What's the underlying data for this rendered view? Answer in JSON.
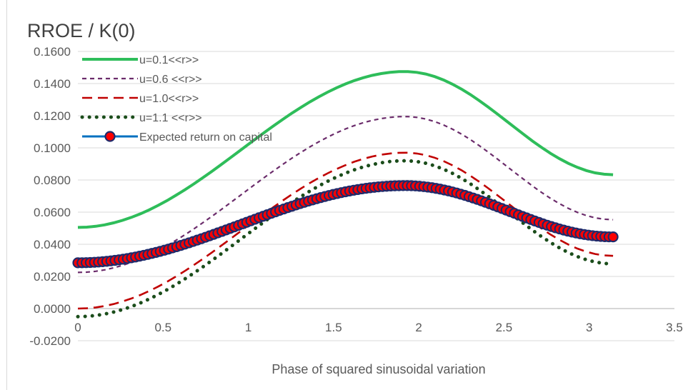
{
  "chart_data": {
    "type": "line",
    "title": "RROE / K(0)",
    "xlabel": "Phase of squared sinusoidal variation",
    "ylabel": "",
    "xlim": [
      0,
      3.5
    ],
    "ylim": [
      -0.02,
      0.16
    ],
    "x_ticks": [
      "0",
      "0.5",
      "1",
      "1.5",
      "2",
      "2.5",
      "3",
      "3.5"
    ],
    "y_ticks": [
      "-0.0200",
      "0.0000",
      "0.0200",
      "0.0400",
      "0.0600",
      "0.0800",
      "0.1000",
      "0.1200",
      "0.1400",
      "0.1600"
    ],
    "grid": true,
    "legend_position": "top-left",
    "series": [
      {
        "name": "u=0.1<<r>>",
        "color": "#2ebd5a",
        "style": "solid-thick",
        "ymin": 0.0505,
        "ymax": 0.1475,
        "yend": 0.0833
      },
      {
        "name": "u=0.6 <<r>>",
        "color": "#6b2c6b",
        "style": "dashed-short",
        "ymin": 0.0225,
        "ymax": 0.1195,
        "yend": 0.0553
      },
      {
        "name": "u=1.0<<r>>",
        "color": "#c00000",
        "style": "dashed-long",
        "ymin": 0.0,
        "ymax": 0.097,
        "yend": 0.0328
      },
      {
        "name": "u=1.1 <<r>>",
        "color": "#1b4d1b",
        "style": "dotted",
        "ymin": -0.005,
        "ymax": 0.092,
        "yend": 0.0278
      },
      {
        "name": "Expected return on capital",
        "color": "#0070c0",
        "marker_fill": "#ff0000",
        "marker_edge": "#1f2a6b",
        "style": "line-markers",
        "ymin": 0.0285,
        "ymax": 0.0765,
        "yend": 0.0446
      }
    ]
  }
}
